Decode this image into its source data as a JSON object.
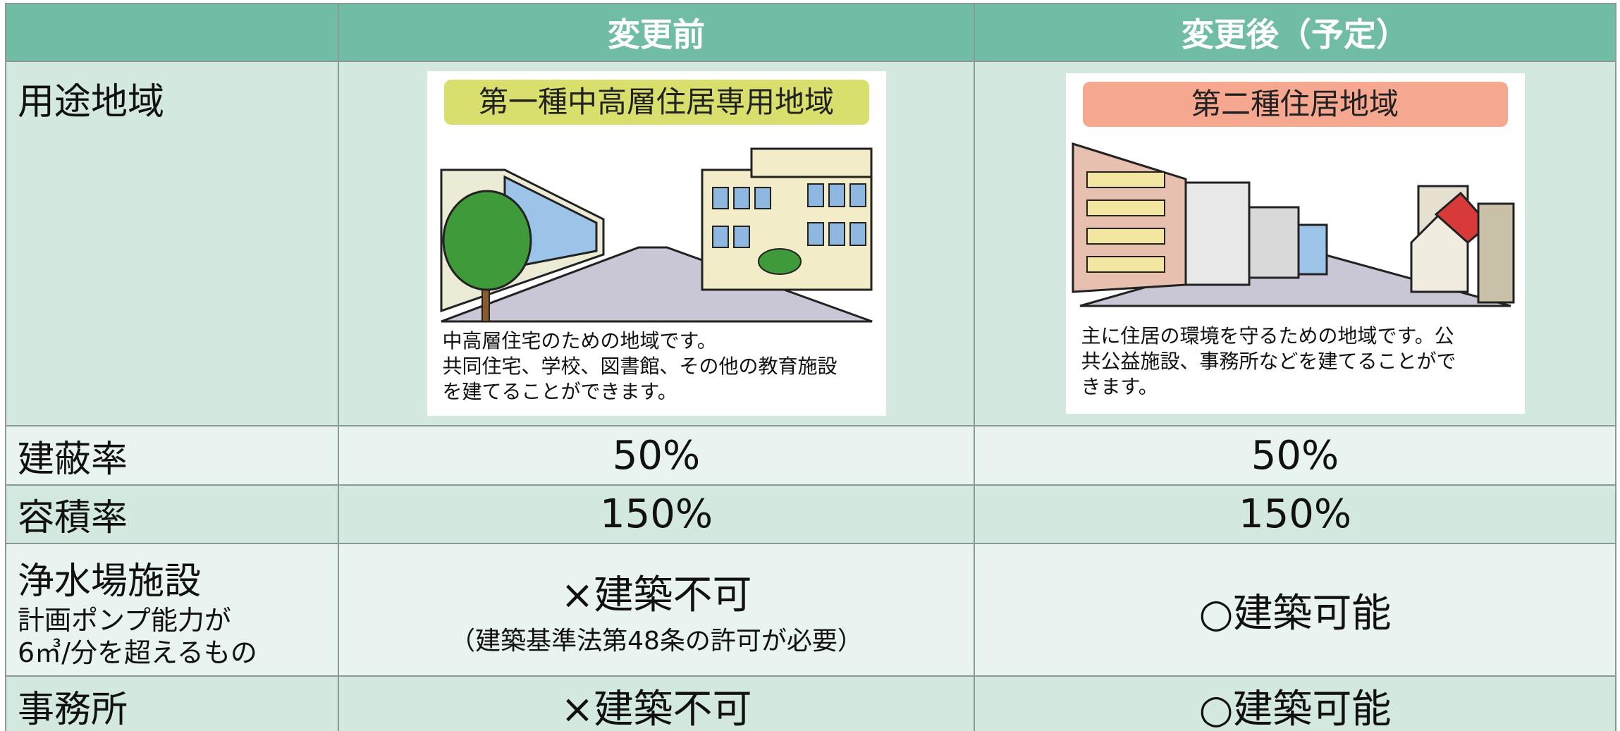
{
  "table": {
    "header": {
      "before": "変更前",
      "after": "変更後（予定）"
    },
    "rows": [
      {
        "label": "用途地域",
        "before": {
          "zone": "第一種中高層住居専用地域",
          "description": [
            "中高層住宅のための地域です。",
            "共同住宅、学校、図書館、その他の教育施設",
            "を建てることができます。"
          ]
        },
        "after": {
          "zone": "第二種住居地域",
          "description": [
            "主に住居の環境を守るための地域です。公",
            "共公益施設、事務所などを建てることがで",
            "きます。"
          ]
        }
      },
      {
        "label": "建蔽率",
        "before": "50%",
        "after": "50%"
      },
      {
        "label": "容積率",
        "before": "150%",
        "after": "150%"
      },
      {
        "label": "浄水場施設",
        "note": [
          "計画ポンプ能力が",
          "6㎥/分を超えるもの"
        ],
        "before": [
          "×建築不可",
          "（建築基準法第48条の許可が必要）"
        ],
        "after": "○建築可能"
      },
      {
        "label": "事務所",
        "before": "×建築不可",
        "after": "○建築可能"
      }
    ]
  }
}
